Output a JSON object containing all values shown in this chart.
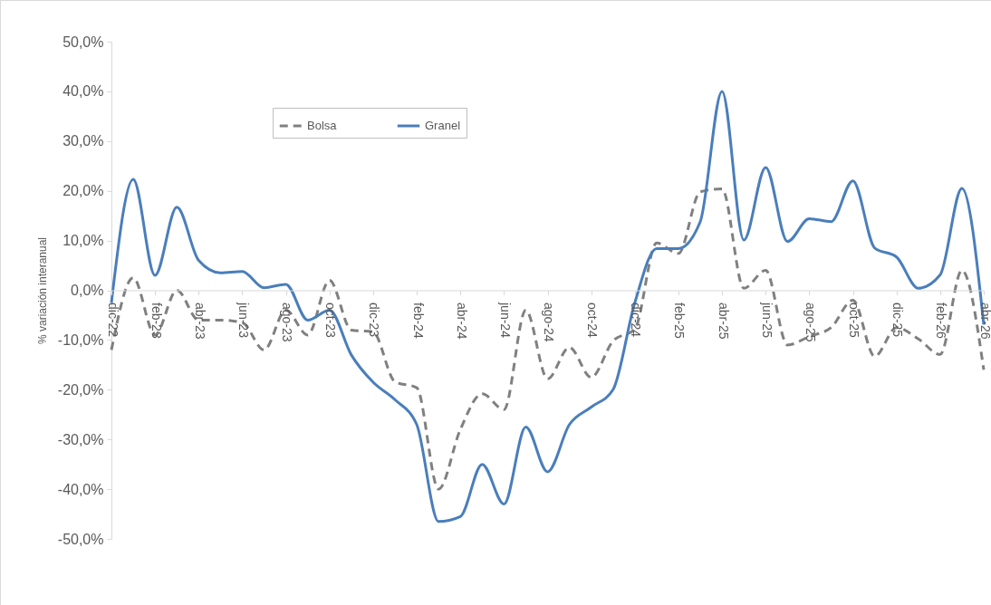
{
  "chart_data": {
    "type": "line",
    "ylabel": "% variación interanual",
    "categories": [
      "dic-22",
      null,
      "feb-23",
      null,
      "abr-23",
      null,
      "jun-23",
      null,
      "ago-23",
      null,
      "oct-23",
      null,
      "dic-23",
      null,
      "feb-24",
      null,
      "abr-24",
      null,
      "jun-24",
      null,
      "ago-24",
      null,
      "oct-24",
      null,
      "dic-24",
      null,
      "feb-25",
      null,
      "abr-25",
      null,
      "jun-25",
      null,
      "ago-25",
      null,
      "oct-25",
      null,
      "dic-25",
      null,
      "feb-26",
      null,
      "abr-26"
    ],
    "series": [
      {
        "name": "Bolsa",
        "color": "#808080",
        "line_style": "dashed",
        "values": [
          -12,
          2.5,
          -9,
          0,
          -6,
          -6,
          -6.5,
          -12,
          -4,
          -9,
          2,
          -8,
          -8.4,
          -18.4,
          -19.6,
          -40,
          -28,
          -20.8,
          -24,
          -4,
          -17.8,
          -11.5,
          -17.5,
          -10.2,
          -7.8,
          9.5,
          7.4,
          19.8,
          20.4,
          0.4,
          4,
          -11,
          -9.3,
          -7.5,
          -2,
          -13.3,
          -7.5,
          -9.8,
          -12.9,
          4,
          -16
        ]
      },
      {
        "name": "Granel",
        "color": "#4a7ebb",
        "line_style": "solid",
        "values": [
          -2.5,
          22.3,
          3,
          16.7,
          6,
          3.5,
          3.8,
          0.5,
          1.2,
          -6,
          -4,
          -13,
          -18.5,
          -22,
          -27,
          -46.5,
          -45.5,
          -35,
          -43,
          -27.5,
          -36.5,
          -27,
          -23.5,
          -20,
          -2.5,
          8.4,
          8.4,
          13.8,
          40,
          10.1,
          24.7,
          9.8,
          14.4,
          13.8,
          22,
          8.5,
          6.7,
          0.4,
          3.1,
          20.5,
          -6.9
        ]
      }
    ],
    "ylim": [
      -50,
      50
    ],
    "yticks": [
      {
        "value": -50,
        "label": "-50,0%"
      },
      {
        "value": -40,
        "label": "-40,0%"
      },
      {
        "value": -30,
        "label": "-30,0%"
      },
      {
        "value": -20,
        "label": "-20,0%"
      },
      {
        "value": -10,
        "label": "-10,0%"
      },
      {
        "value": 0,
        "label": "0,0%"
      },
      {
        "value": 10,
        "label": "10,0%"
      },
      {
        "value": 20,
        "label": "20,0%"
      },
      {
        "value": 30,
        "label": "30,0%"
      },
      {
        "value": 40,
        "label": "40,0%"
      },
      {
        "value": 50,
        "label": "50,0%"
      }
    ],
    "grid": false,
    "legend": "top",
    "marker": "none"
  }
}
